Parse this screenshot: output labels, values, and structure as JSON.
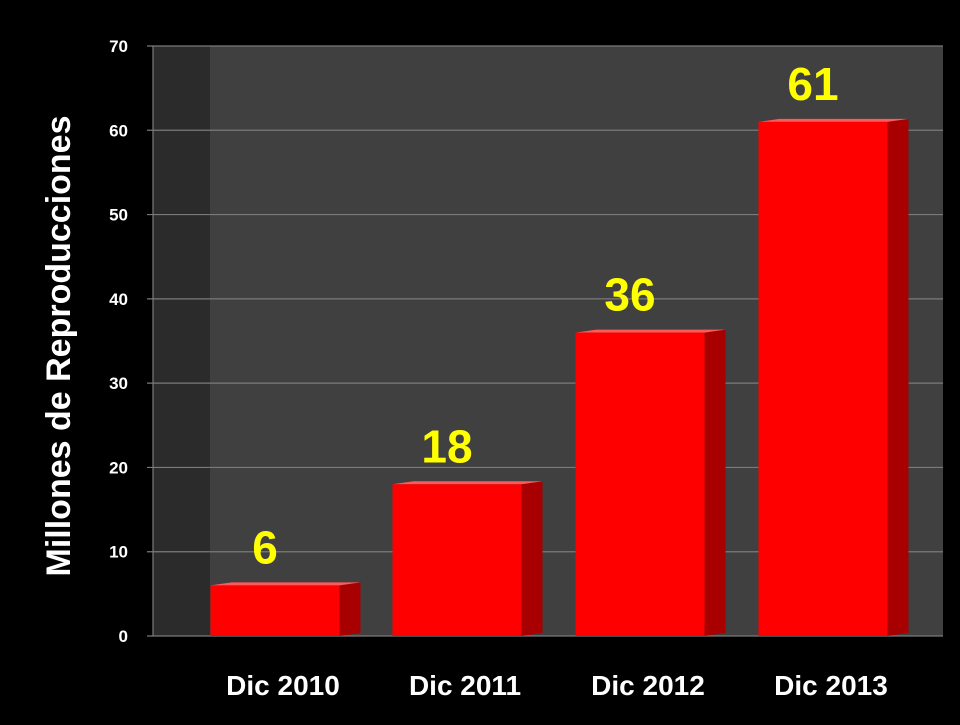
{
  "chart_data": {
    "type": "bar",
    "title": "",
    "xlabel": "",
    "ylabel": "Millones de Reproducciones",
    "categories": [
      "Dic 2010",
      "Dic 2011",
      "Dic 2012",
      "Dic 2013"
    ],
    "values": [
      6,
      18,
      36,
      61
    ],
    "data_labels": [
      "6",
      "18",
      "36",
      "61"
    ],
    "ylim": [
      0,
      70
    ],
    "yticks": [
      0,
      10,
      20,
      30,
      40,
      50,
      60,
      70
    ],
    "grid": true,
    "legend": "none",
    "colors": {
      "background": "#000000",
      "plot_area": "#404040",
      "plot_side_wall": "#2b2b2b",
      "gridline": "#7a7a7a",
      "bar_front": "#ff0000",
      "bar_side": "#a80000",
      "data_label": "#ffff00",
      "text": "#ffffff"
    }
  }
}
